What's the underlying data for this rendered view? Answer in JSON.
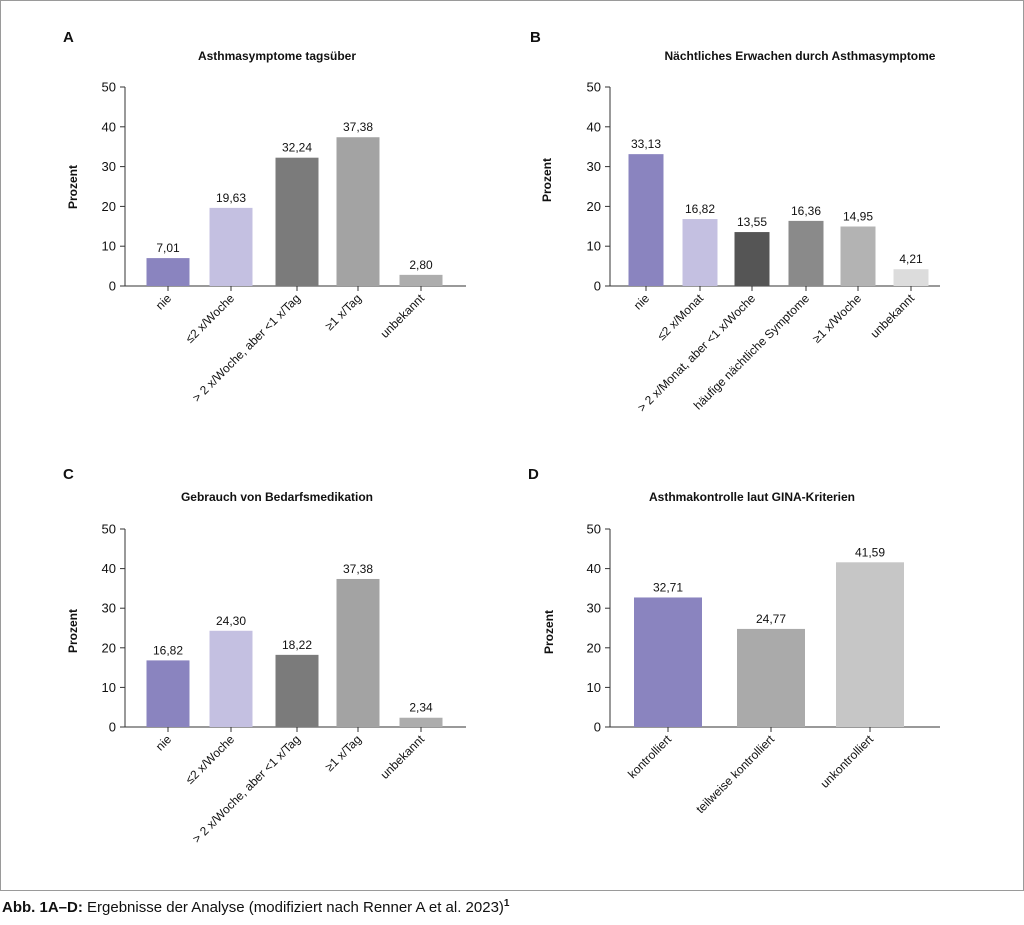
{
  "caption": {
    "label": "Abb. 1A–D:",
    "text": " Ergebnisse der Analyse (modifiziert nach Renner A et al. 2023)",
    "ref": "1"
  },
  "chart_data": [
    {
      "panel": "A",
      "type": "bar",
      "title": "Asthmasymptome tagsüber",
      "ylabel": "Prozent",
      "xlabel": "",
      "ylim": [
        0,
        50
      ],
      "yticks": [
        0,
        10,
        20,
        30,
        40,
        50
      ],
      "grid": false,
      "categories": [
        "nie",
        "≤2 x/Woche",
        "> 2 x/Woche, aber <1 x/Tag",
        "≥1 x/Tag",
        "unbekannt"
      ],
      "values": [
        7.01,
        19.63,
        32.24,
        37.38,
        2.8
      ],
      "value_labels": [
        "7,01",
        "19,63",
        "32,24",
        "37,38",
        "2,80"
      ],
      "colors": [
        "#8a84bf",
        "#c4c0e1",
        "#7b7b7b",
        "#a3a3a3",
        "#adadad"
      ]
    },
    {
      "panel": "B",
      "type": "bar",
      "title": "Nächtliches Erwachen durch Asthmasymptome",
      "ylabel": "Prozent",
      "xlabel": "",
      "ylim": [
        0,
        50
      ],
      "yticks": [
        0,
        10,
        20,
        30,
        40,
        50
      ],
      "grid": false,
      "categories": [
        "nie",
        "≤2 x/Monat",
        "> 2 x/Monat, aber <1 x/Woche",
        "häufige nächtliche Symptome",
        "≥1 x/Woche",
        "unbekannt"
      ],
      "values": [
        33.13,
        16.82,
        13.55,
        16.36,
        14.95,
        4.21
      ],
      "value_labels": [
        "33,13",
        "16,82",
        "13,55",
        "16,36",
        "14,95",
        "4,21"
      ],
      "colors": [
        "#8a84bf",
        "#c4c0e1",
        "#555555",
        "#8a8a8a",
        "#b3b3b3",
        "#dcdcdc"
      ]
    },
    {
      "panel": "C",
      "type": "bar",
      "title": "Gebrauch von Bedarfsmedikation",
      "ylabel": "Prozent",
      "xlabel": "",
      "ylim": [
        0,
        50
      ],
      "yticks": [
        0,
        10,
        20,
        30,
        40,
        50
      ],
      "grid": false,
      "categories": [
        "nie",
        "≤2 x/Woche",
        "> 2 x/Woche, aber <1 x/Tag",
        "≥1 x/Tag",
        "unbekannt"
      ],
      "values": [
        16.82,
        24.3,
        18.22,
        37.38,
        2.34
      ],
      "value_labels": [
        "16,82",
        "24,30",
        "18,22",
        "37,38",
        "2,34"
      ],
      "colors": [
        "#8a84bf",
        "#c4c0e1",
        "#7b7b7b",
        "#a3a3a3",
        "#adadad"
      ]
    },
    {
      "panel": "D",
      "type": "bar",
      "title": "Asthmakontrolle laut GINA-Kriterien",
      "ylabel": "Prozent",
      "xlabel": "",
      "ylim": [
        0,
        50
      ],
      "yticks": [
        0,
        10,
        20,
        30,
        40,
        50
      ],
      "grid": false,
      "categories": [
        "kontrolliert",
        "teilweise kontrolliert",
        "unkontrolliert"
      ],
      "values": [
        32.71,
        24.77,
        41.59
      ],
      "value_labels": [
        "32,71",
        "24,77",
        "41,59"
      ],
      "colors": [
        "#8a84bf",
        "#aaaaaa",
        "#c6c6c6"
      ]
    }
  ]
}
